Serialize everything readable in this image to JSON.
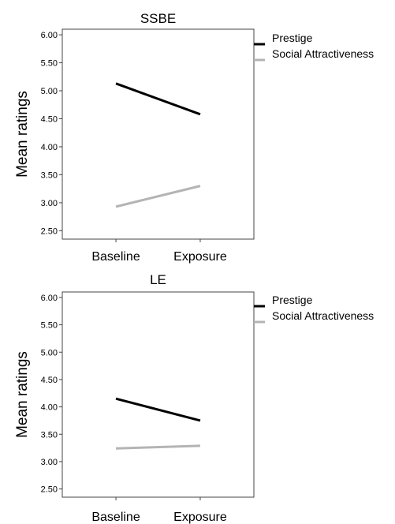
{
  "chart_data": [
    {
      "type": "line",
      "title": "SSBE",
      "xlabel": "",
      "ylabel": "Mean ratings",
      "categories": [
        "Baseline",
        "Exposure"
      ],
      "ylim": [
        2.35,
        6.1
      ],
      "yticks": [
        "6.00",
        "5.50",
        "5.00",
        "4.50",
        "4.00",
        "3.50",
        "3.00",
        "2.50"
      ],
      "legend_position": "right",
      "series": [
        {
          "name": "Prestige",
          "values": [
            5.13,
            4.58
          ],
          "color": "#000000"
        },
        {
          "name": "Social Attractiveness",
          "values": [
            2.93,
            3.3
          ],
          "color": "#b4b4b4"
        }
      ]
    },
    {
      "type": "line",
      "title": "LE",
      "xlabel": "",
      "ylabel": "Mean ratings",
      "categories": [
        "Baseline",
        "Exposure"
      ],
      "ylim": [
        2.35,
        6.1
      ],
      "yticks": [
        "6.00",
        "5.50",
        "5.00",
        "4.50",
        "4.00",
        "3.50",
        "3.00",
        "2.50"
      ],
      "legend_position": "right",
      "series": [
        {
          "name": "Prestige",
          "values": [
            4.15,
            3.75
          ],
          "color": "#000000"
        },
        {
          "name": "Social Attractiveness",
          "values": [
            3.24,
            3.29
          ],
          "color": "#b4b4b4"
        }
      ]
    }
  ]
}
